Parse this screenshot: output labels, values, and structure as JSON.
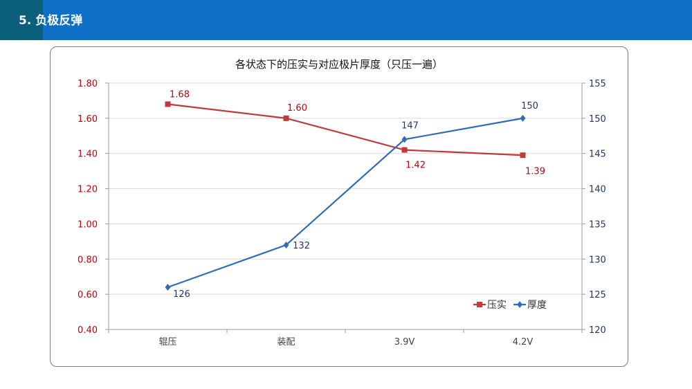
{
  "header": {
    "title": "5. 负极反弹",
    "colors": {
      "bar": "#0e6fc7",
      "tab": "#0b5f7a"
    }
  },
  "chart_data": {
    "type": "line",
    "title": "各状态下的压实与对应极片厚度（只压一遍）",
    "categories": [
      "辊压",
      "装配",
      "3.9V",
      "4.2V"
    ],
    "series": [
      {
        "name": "压实",
        "axis": "left",
        "values": [
          1.68,
          1.6,
          1.42,
          1.39
        ],
        "labels": [
          "1.68",
          "1.60",
          "1.42",
          "1.39"
        ],
        "color": "#c0393b",
        "marker": "square"
      },
      {
        "name": "厚度",
        "axis": "right",
        "values": [
          126,
          132,
          147,
          150
        ],
        "labels": [
          "126",
          "132",
          "147",
          "150"
        ],
        "color": "#2e6db4",
        "marker": "diamond"
      }
    ],
    "y_left": {
      "lim": [
        0.4,
        1.8
      ],
      "ticks": [
        "0.40",
        "0.60",
        "0.80",
        "1.00",
        "1.20",
        "1.40",
        "1.60",
        "1.80"
      ],
      "color": "#c0000c"
    },
    "y_right": {
      "lim": [
        120,
        155
      ],
      "ticks": [
        "120",
        "125",
        "130",
        "135",
        "140",
        "145",
        "150",
        "155"
      ],
      "color": "#1f3864"
    },
    "grid": true,
    "legend_position": "bottom-right"
  }
}
